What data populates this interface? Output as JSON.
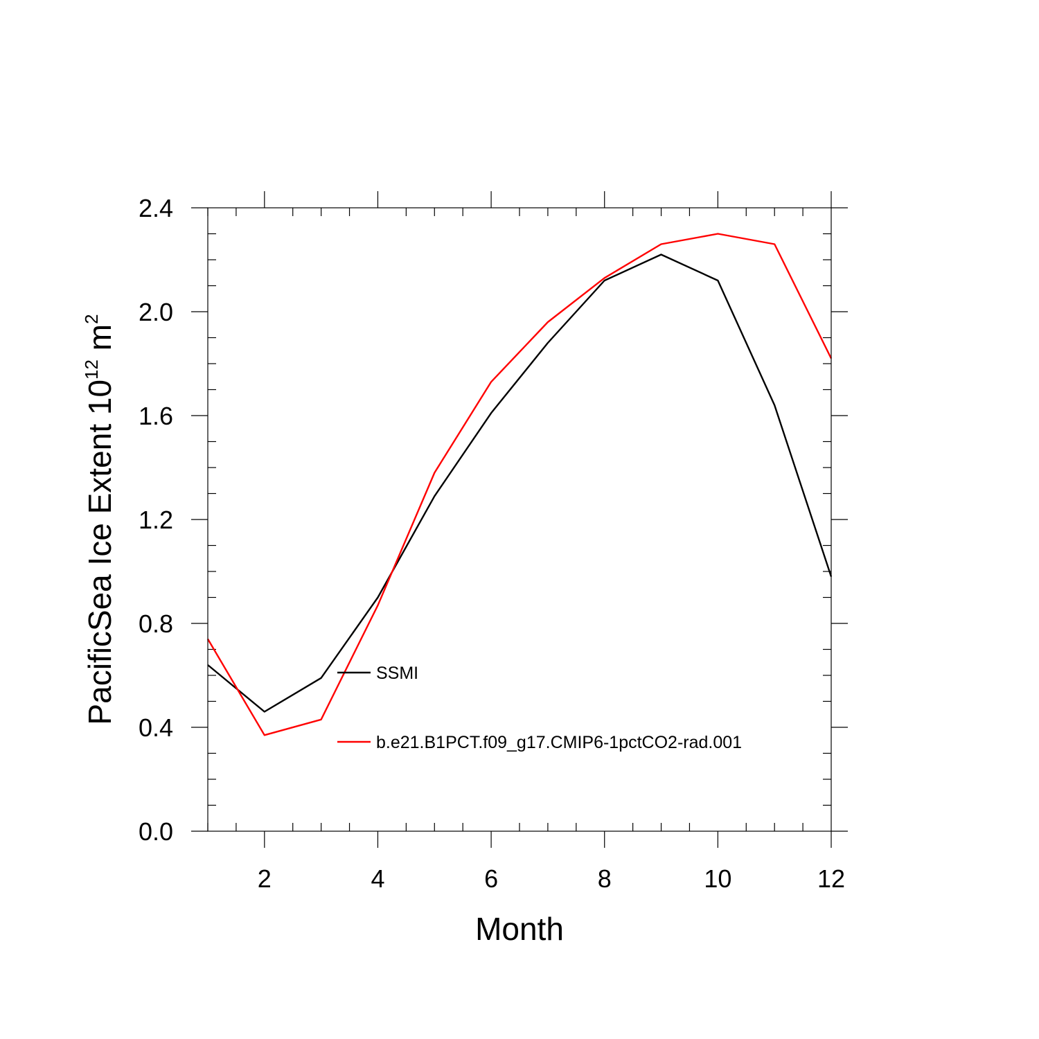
{
  "chart_data": {
    "type": "line",
    "xlabel": "Month",
    "ylabel_parts": {
      "main": "PacificSea Ice Extent 10",
      "exp1": "12",
      "unit": " m",
      "exp2": "2"
    },
    "xlim": [
      1,
      12
    ],
    "ylim": [
      0,
      2.4
    ],
    "x_ticks": [
      2,
      4,
      6,
      8,
      10,
      12
    ],
    "x_tick_labels": [
      "2",
      "4",
      "6",
      "8",
      "10",
      "12"
    ],
    "y_ticks": [
      0.0,
      0.4,
      0.8,
      1.2,
      1.6,
      2.0,
      2.4
    ],
    "y_tick_labels": [
      "0.0",
      "0.4",
      "0.8",
      "1.2",
      "1.6",
      "2.0",
      "2.4"
    ],
    "x": [
      1,
      2,
      3,
      4,
      5,
      6,
      7,
      8,
      9,
      10,
      11,
      12
    ],
    "series": [
      {
        "name": "SSMI",
        "color": "#000000",
        "values": [
          0.64,
          0.46,
          0.59,
          0.9,
          1.29,
          1.61,
          1.88,
          2.12,
          2.22,
          2.12,
          1.64,
          0.98
        ]
      },
      {
        "name": "b.e21.B1PCT.f09_g17.CMIP6-1pctCO2-rad.001",
        "color": "#ff0000",
        "values": [
          0.74,
          0.37,
          0.43,
          0.87,
          1.38,
          1.73,
          1.96,
          2.13,
          2.26,
          2.3,
          2.26,
          1.82
        ]
      }
    ],
    "grid": false,
    "legend_placement": "inside-lower-center"
  }
}
